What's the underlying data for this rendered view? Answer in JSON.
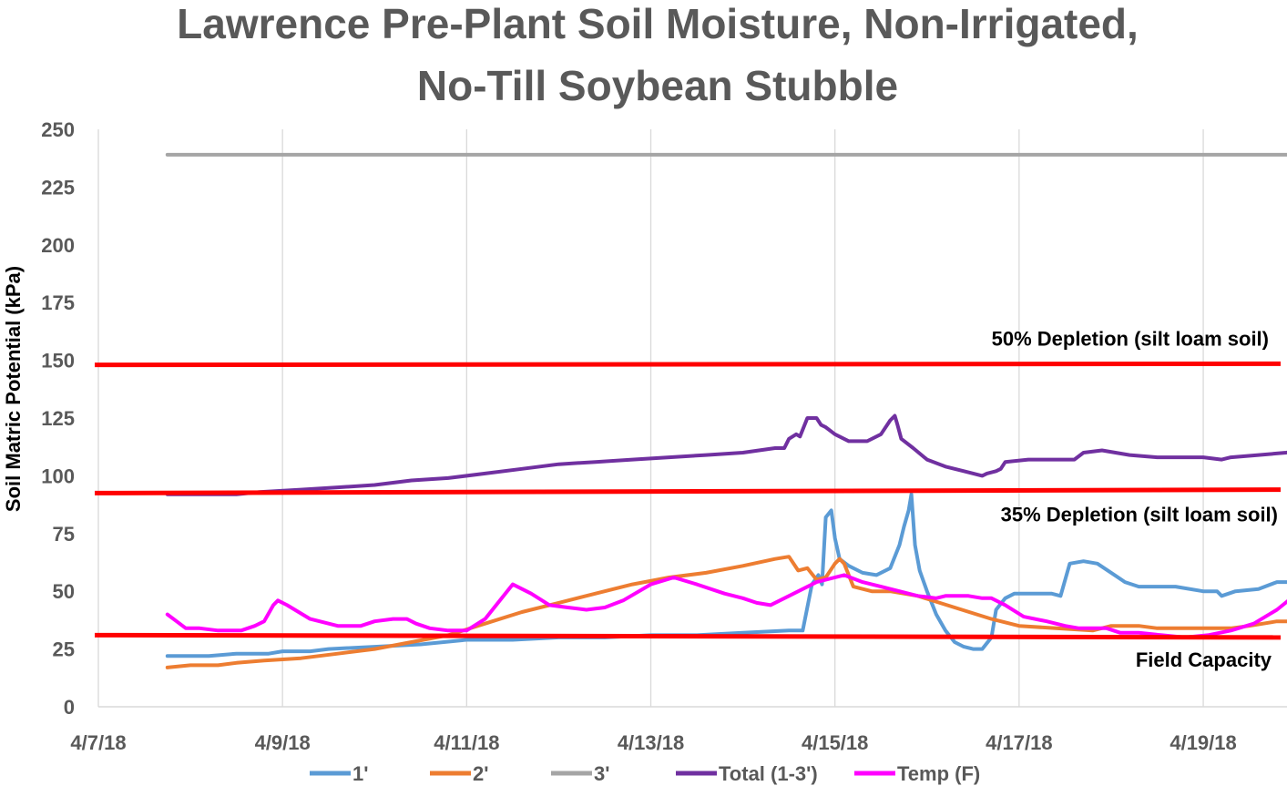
{
  "chart_data": {
    "type": "line",
    "title": [
      "Lawrence Pre-Plant Soil Moisture, Non-Irrigated,",
      "No-Till Soybean Stubble"
    ],
    "ylabel": "Soil Matric Potential (kPa)",
    "xlabel": "",
    "ylim": [
      0,
      250
    ],
    "yticks": [
      0,
      25,
      50,
      75,
      100,
      125,
      150,
      175,
      200,
      225,
      250
    ],
    "x_tick_labels": [
      "4/7/18",
      "4/9/18",
      "4/11/18",
      "4/13/18",
      "4/15/18",
      "4/17/18",
      "4/19/18"
    ],
    "x_range_days": [
      0,
      13
    ],
    "grid": "vertical",
    "legend_position": "bottom",
    "series": [
      {
        "name": "1'",
        "color": "#5B9BD5",
        "points": [
          [
            0.75,
            22
          ],
          [
            1.2,
            22
          ],
          [
            1.5,
            23
          ],
          [
            1.85,
            23
          ],
          [
            2.0,
            24
          ],
          [
            2.3,
            24
          ],
          [
            2.5,
            25
          ],
          [
            3.0,
            26
          ],
          [
            3.5,
            27
          ],
          [
            4.0,
            29
          ],
          [
            4.5,
            29
          ],
          [
            5.0,
            30
          ],
          [
            5.5,
            30
          ],
          [
            6.0,
            31
          ],
          [
            6.5,
            31
          ],
          [
            7.0,
            32
          ],
          [
            7.5,
            33
          ],
          [
            7.65,
            33
          ],
          [
            7.75,
            53
          ],
          [
            7.82,
            57
          ],
          [
            7.86,
            53
          ],
          [
            7.9,
            82
          ],
          [
            7.96,
            85
          ],
          [
            8.0,
            73
          ],
          [
            8.05,
            64
          ],
          [
            8.15,
            61
          ],
          [
            8.3,
            58
          ],
          [
            8.45,
            57
          ],
          [
            8.6,
            60
          ],
          [
            8.7,
            70
          ],
          [
            8.75,
            78
          ],
          [
            8.8,
            85
          ],
          [
            8.83,
            92
          ],
          [
            8.87,
            70
          ],
          [
            8.92,
            59
          ],
          [
            9.0,
            50
          ],
          [
            9.1,
            40
          ],
          [
            9.2,
            33
          ],
          [
            9.3,
            28
          ],
          [
            9.4,
            26
          ],
          [
            9.5,
            25
          ],
          [
            9.6,
            25
          ],
          [
            9.7,
            30
          ],
          [
            9.75,
            42
          ],
          [
            9.85,
            47
          ],
          [
            9.95,
            49
          ],
          [
            10.2,
            49
          ],
          [
            10.35,
            49
          ],
          [
            10.45,
            48
          ],
          [
            10.55,
            62
          ],
          [
            10.7,
            63
          ],
          [
            10.85,
            62
          ],
          [
            11.0,
            58
          ],
          [
            11.15,
            54
          ],
          [
            11.3,
            52
          ],
          [
            11.7,
            52
          ],
          [
            12.0,
            50
          ],
          [
            12.15,
            50
          ],
          [
            12.2,
            48
          ],
          [
            12.35,
            50
          ],
          [
            12.6,
            51
          ],
          [
            12.8,
            54
          ],
          [
            13.1,
            54
          ],
          [
            13.3,
            57
          ],
          [
            13.55,
            61
          ],
          [
            13.65,
            62
          ]
        ]
      },
      {
        "name": "2'",
        "color": "#ED7D31",
        "points": [
          [
            0.75,
            17
          ],
          [
            1.0,
            18
          ],
          [
            1.3,
            18
          ],
          [
            1.5,
            19
          ],
          [
            1.8,
            20
          ],
          [
            2.2,
            21
          ],
          [
            2.6,
            23
          ],
          [
            3.0,
            25
          ],
          [
            3.4,
            28
          ],
          [
            3.8,
            31
          ],
          [
            4.2,
            36
          ],
          [
            4.6,
            41
          ],
          [
            5.0,
            45
          ],
          [
            5.4,
            49
          ],
          [
            5.8,
            53
          ],
          [
            6.2,
            56
          ],
          [
            6.6,
            58
          ],
          [
            7.0,
            61
          ],
          [
            7.35,
            64
          ],
          [
            7.5,
            65
          ],
          [
            7.6,
            59
          ],
          [
            7.7,
            60
          ],
          [
            7.8,
            55
          ],
          [
            7.9,
            56
          ],
          [
            8.0,
            62
          ],
          [
            8.05,
            64
          ],
          [
            8.1,
            62
          ],
          [
            8.2,
            52
          ],
          [
            8.4,
            50
          ],
          [
            8.6,
            50
          ],
          [
            8.9,
            48
          ],
          [
            9.3,
            43
          ],
          [
            9.7,
            38
          ],
          [
            10.0,
            35
          ],
          [
            10.4,
            34
          ],
          [
            10.8,
            33
          ],
          [
            11.0,
            35
          ],
          [
            11.3,
            35
          ],
          [
            11.5,
            34
          ],
          [
            12.0,
            34
          ],
          [
            12.3,
            34
          ],
          [
            12.5,
            35
          ],
          [
            12.8,
            37
          ],
          [
            13.0,
            37
          ],
          [
            13.3,
            40
          ],
          [
            13.65,
            45
          ]
        ]
      },
      {
        "name": "3'",
        "color": "#A5A5A5",
        "points": [
          [
            0.75,
            239
          ],
          [
            13.65,
            239
          ]
        ]
      },
      {
        "name": "Total (1-3')",
        "color": "#7030A0",
        "points": [
          [
            0.75,
            92
          ],
          [
            1.5,
            92
          ],
          [
            1.75,
            93
          ],
          [
            2.2,
            94
          ],
          [
            2.6,
            95
          ],
          [
            3.0,
            96
          ],
          [
            3.4,
            98
          ],
          [
            3.8,
            99
          ],
          [
            4.2,
            101
          ],
          [
            4.6,
            103
          ],
          [
            5.0,
            105
          ],
          [
            5.4,
            106
          ],
          [
            5.8,
            107
          ],
          [
            6.2,
            108
          ],
          [
            6.6,
            109
          ],
          [
            7.0,
            110
          ],
          [
            7.35,
            112
          ],
          [
            7.45,
            112
          ],
          [
            7.5,
            116
          ],
          [
            7.58,
            118
          ],
          [
            7.62,
            117
          ],
          [
            7.7,
            125
          ],
          [
            7.8,
            125
          ],
          [
            7.85,
            122
          ],
          [
            7.9,
            121
          ],
          [
            8.0,
            118
          ],
          [
            8.15,
            115
          ],
          [
            8.35,
            115
          ],
          [
            8.5,
            118
          ],
          [
            8.6,
            124
          ],
          [
            8.65,
            126
          ],
          [
            8.68,
            122
          ],
          [
            8.72,
            116
          ],
          [
            8.85,
            112
          ],
          [
            9.0,
            107
          ],
          [
            9.2,
            104
          ],
          [
            9.4,
            102
          ],
          [
            9.6,
            100
          ],
          [
            9.65,
            101
          ],
          [
            9.75,
            102
          ],
          [
            9.8,
            103
          ],
          [
            9.85,
            106
          ],
          [
            10.1,
            107
          ],
          [
            10.4,
            107
          ],
          [
            10.6,
            107
          ],
          [
            10.7,
            110
          ],
          [
            10.9,
            111
          ],
          [
            11.2,
            109
          ],
          [
            11.5,
            108
          ],
          [
            12.0,
            108
          ],
          [
            12.2,
            107
          ],
          [
            12.3,
            108
          ],
          [
            12.6,
            109
          ],
          [
            12.9,
            110
          ],
          [
            13.1,
            111
          ],
          [
            13.4,
            113
          ],
          [
            13.65,
            115
          ]
        ]
      },
      {
        "name": "Temp (F)",
        "color": "#FF00FF",
        "points": [
          [
            0.75,
            40
          ],
          [
            0.85,
            37
          ],
          [
            0.95,
            34
          ],
          [
            1.1,
            34
          ],
          [
            1.3,
            33
          ],
          [
            1.45,
            33
          ],
          [
            1.55,
            33
          ],
          [
            1.7,
            35
          ],
          [
            1.8,
            37
          ],
          [
            1.9,
            44
          ],
          [
            1.95,
            46
          ],
          [
            2.05,
            44
          ],
          [
            2.3,
            38
          ],
          [
            2.6,
            35
          ],
          [
            2.85,
            35
          ],
          [
            3.0,
            37
          ],
          [
            3.2,
            38
          ],
          [
            3.35,
            38
          ],
          [
            3.45,
            36
          ],
          [
            3.6,
            34
          ],
          [
            3.8,
            33
          ],
          [
            4.0,
            33
          ],
          [
            4.2,
            38
          ],
          [
            4.5,
            53
          ],
          [
            4.7,
            49
          ],
          [
            4.9,
            44
          ],
          [
            5.1,
            43
          ],
          [
            5.3,
            42
          ],
          [
            5.5,
            43
          ],
          [
            5.7,
            46
          ],
          [
            6.0,
            53
          ],
          [
            6.25,
            56
          ],
          [
            6.5,
            53
          ],
          [
            6.8,
            49
          ],
          [
            7.0,
            47
          ],
          [
            7.15,
            45
          ],
          [
            7.3,
            44
          ],
          [
            7.5,
            48
          ],
          [
            7.8,
            54
          ],
          [
            8.1,
            57
          ],
          [
            8.3,
            54
          ],
          [
            8.5,
            52
          ],
          [
            8.7,
            50
          ],
          [
            8.9,
            48
          ],
          [
            9.1,
            47
          ],
          [
            9.2,
            48
          ],
          [
            9.45,
            48
          ],
          [
            9.6,
            47
          ],
          [
            9.7,
            47
          ],
          [
            9.85,
            44
          ],
          [
            10.05,
            39
          ],
          [
            10.3,
            37
          ],
          [
            10.5,
            35
          ],
          [
            10.65,
            34
          ],
          [
            10.8,
            34
          ],
          [
            10.95,
            34
          ],
          [
            11.1,
            32
          ],
          [
            11.3,
            32
          ],
          [
            11.55,
            31
          ],
          [
            11.8,
            30
          ],
          [
            12.05,
            31
          ],
          [
            12.3,
            33
          ],
          [
            12.55,
            36
          ],
          [
            12.8,
            42
          ],
          [
            13.05,
            50
          ],
          [
            13.3,
            52
          ],
          [
            13.45,
            46
          ],
          [
            13.55,
            47
          ],
          [
            13.65,
            51
          ]
        ]
      }
    ],
    "reference_lines": [
      {
        "label": "50% Depletion (silt loam soil)",
        "y_start": 148,
        "y_end": 148.5,
        "color": "#FF0000"
      },
      {
        "label": "35% Depletion (silt loam soil)",
        "y_start": 92.5,
        "y_end": 94,
        "color": "#FF0000"
      },
      {
        "label": "Field Capacity",
        "y_start": 31,
        "y_end": 30,
        "color": "#FF0000"
      }
    ]
  }
}
